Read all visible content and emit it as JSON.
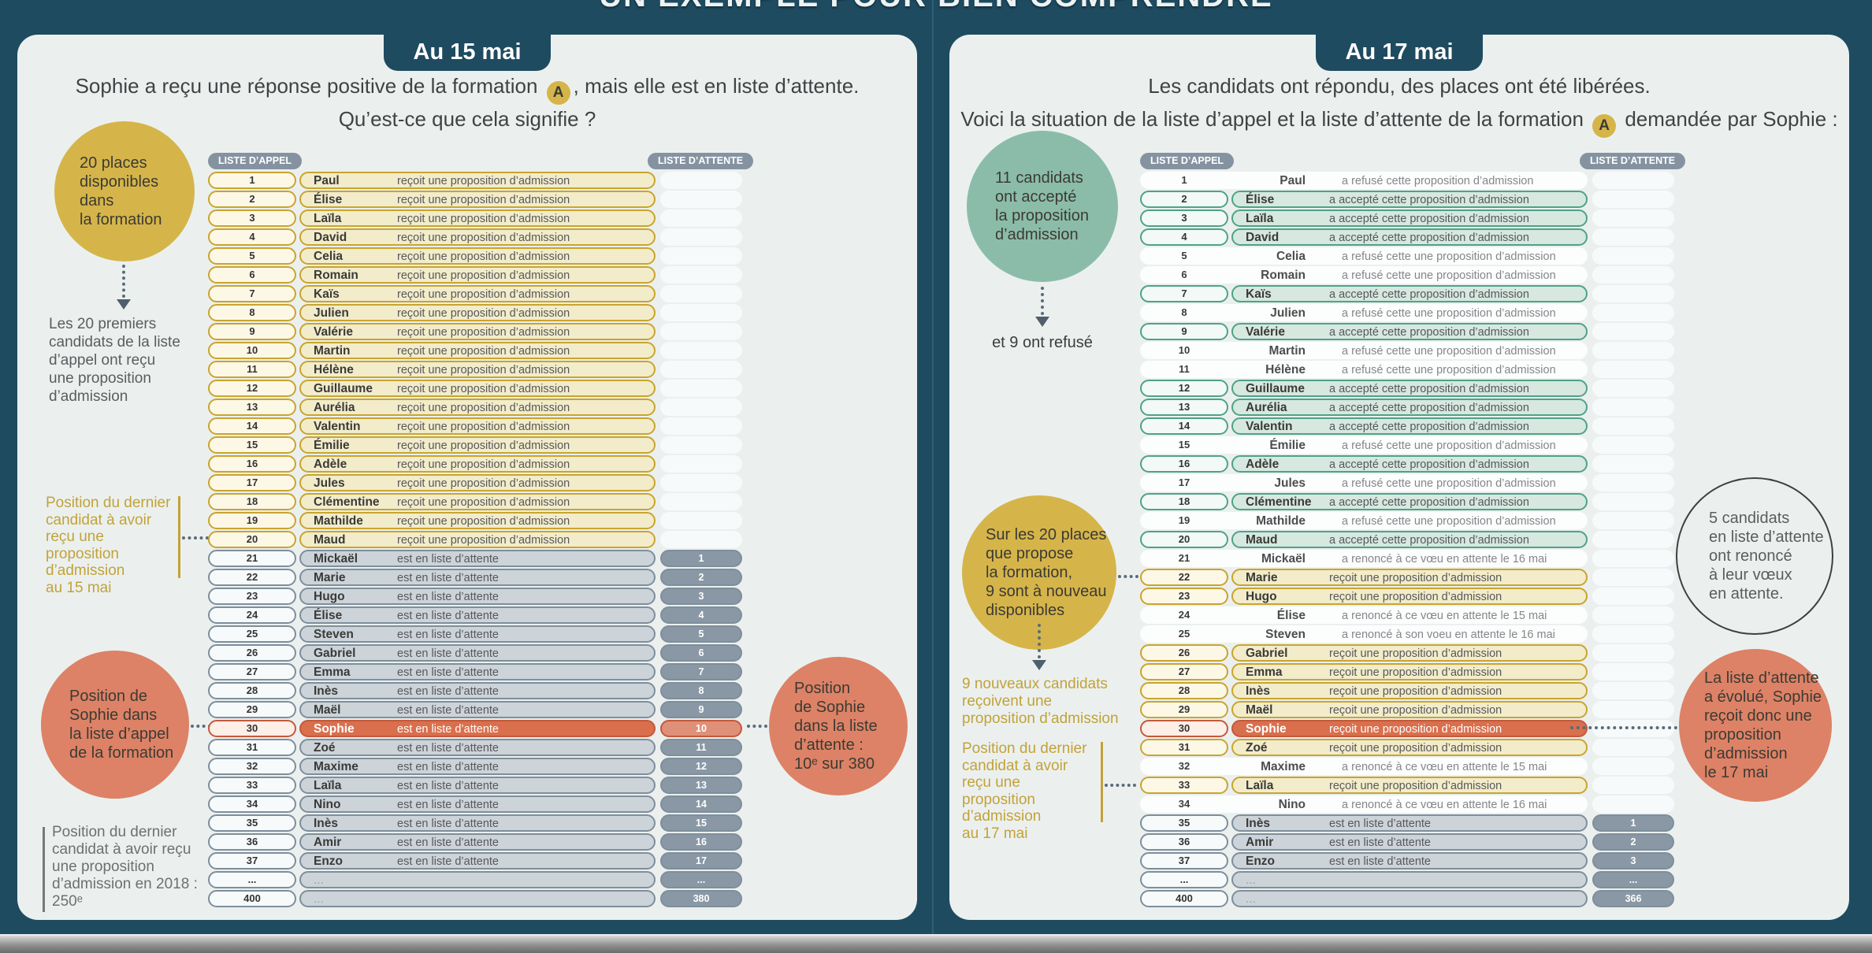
{
  "title": "UN EXEMPLE POUR BIEN COMPRENDRE",
  "colors": {
    "background": "#1e4b60",
    "panel": "#ebf0ef",
    "gold": "#d5b54a",
    "gold_border": "#c9a42e",
    "teal": "#8bbcaa",
    "teal_border": "#4ea287",
    "slate": "#8593a1",
    "salmon": "#dd8266",
    "sophie_row": "#d96f4d",
    "gold_text": "#c2a238"
  },
  "list_labels": {
    "appel": "LISTE D’APPEL",
    "attente": "LISTE D’ATTENTE"
  },
  "panels": [
    {
      "badge": "Au 15 mai",
      "intro": {
        "line1_pre": "Sophie a reçu une réponse positive de la formation ",
        "badge": "A",
        "line1_post": ", mais elle est en liste d’attente.",
        "line2": "Qu’est-ce que cela signifie ?"
      },
      "annotations": {
        "top_circle": "20 places\ndisponibles dans\nla formation",
        "first20_note": "Les 20 premiers\ncandidats de la liste\nd’appel ont reçu\nune proposition\nd’admission",
        "gold_note": "Position du dernier\ncandidat à avoir\nreçu une proposition\nd’admission\nau 15 mai",
        "sophie_circle": "Position de\nSophie dans\nla liste d’appel\nde la formation",
        "note_2018": "Position du dernier\ncandidat à avoir reçu\nune proposition\nd’admission en 2018 :\n250ᵉ",
        "attente_circle": "Position\nde Sophie\ndans la liste\nd’attente :\n10ᵉ sur 380"
      },
      "rows": [
        {
          "n": "1",
          "name": "Paul",
          "status": "reçoit une proposition d’admission",
          "t": "y"
        },
        {
          "n": "2",
          "name": "Élise",
          "status": "reçoit une proposition d’admission",
          "t": "y"
        },
        {
          "n": "3",
          "name": "Laïla",
          "status": "reçoit une proposition d’admission",
          "t": "y"
        },
        {
          "n": "4",
          "name": "David",
          "status": "reçoit une proposition d’admission",
          "t": "y"
        },
        {
          "n": "5",
          "name": "Celia",
          "status": "reçoit une proposition d’admission",
          "t": "y"
        },
        {
          "n": "6",
          "name": "Romain",
          "status": "reçoit une proposition d’admission",
          "t": "y"
        },
        {
          "n": "7",
          "name": "Kaïs",
          "status": "reçoit une proposition d’admission",
          "t": "y"
        },
        {
          "n": "8",
          "name": "Julien",
          "status": "reçoit une proposition d’admission",
          "t": "y"
        },
        {
          "n": "9",
          "name": "Valérie",
          "status": "reçoit une proposition d’admission",
          "t": "y"
        },
        {
          "n": "10",
          "name": "Martin",
          "status": "reçoit une proposition d’admission",
          "t": "y"
        },
        {
          "n": "11",
          "name": "Hélène",
          "status": "reçoit une proposition d’admission",
          "t": "y"
        },
        {
          "n": "12",
          "name": "Guillaume",
          "status": "reçoit une proposition d’admission",
          "t": "y"
        },
        {
          "n": "13",
          "name": "Aurélia",
          "status": "reçoit une proposition d’admission",
          "t": "y"
        },
        {
          "n": "14",
          "name": "Valentin",
          "status": "reçoit une proposition d’admission",
          "t": "y"
        },
        {
          "n": "15",
          "name": "Émilie",
          "status": "reçoit une proposition d’admission",
          "t": "y"
        },
        {
          "n": "16",
          "name": "Adèle",
          "status": "reçoit une proposition d’admission",
          "t": "y"
        },
        {
          "n": "17",
          "name": "Jules",
          "status": "reçoit une proposition d’admission",
          "t": "y"
        },
        {
          "n": "18",
          "name": "Clémentine",
          "status": "reçoit une proposition d’admission",
          "t": "y"
        },
        {
          "n": "19",
          "name": "Mathilde",
          "status": "reçoit une proposition d’admission",
          "t": "y"
        },
        {
          "n": "20",
          "name": "Maud",
          "status": "reçoit une proposition d’admission",
          "t": "y"
        },
        {
          "n": "21",
          "name": "Mickaël",
          "status": "est en liste d’attente",
          "t": "g",
          "w": "1"
        },
        {
          "n": "22",
          "name": "Marie",
          "status": "est en liste d’attente",
          "t": "g",
          "w": "2"
        },
        {
          "n": "23",
          "name": "Hugo",
          "status": "est en liste d’attente",
          "t": "g",
          "w": "3"
        },
        {
          "n": "24",
          "name": "Élise",
          "status": "est en liste d’attente",
          "t": "g",
          "w": "4"
        },
        {
          "n": "25",
          "name": "Steven",
          "status": "est en liste d’attente",
          "t": "g",
          "w": "5"
        },
        {
          "n": "26",
          "name": "Gabriel",
          "status": "est en liste d’attente",
          "t": "g",
          "w": "6"
        },
        {
          "n": "27",
          "name": "Emma",
          "status": "est en liste d’attente",
          "t": "g",
          "w": "7"
        },
        {
          "n": "28",
          "name": "Inès",
          "status": "est en liste d’attente",
          "t": "g",
          "w": "8"
        },
        {
          "n": "29",
          "name": "Maël",
          "status": "est en liste d’attente",
          "t": "g",
          "w": "9"
        },
        {
          "n": "30",
          "name": "Sophie",
          "status": "est en liste d’attente",
          "t": "s",
          "w": "10"
        },
        {
          "n": "31",
          "name": "Zoé",
          "status": "est en liste d’attente",
          "t": "g",
          "w": "11"
        },
        {
          "n": "32",
          "name": "Maxime",
          "status": "est en liste d’attente",
          "t": "g",
          "w": "12"
        },
        {
          "n": "33",
          "name": "Laïla",
          "status": "est en liste d’attente",
          "t": "g",
          "w": "13"
        },
        {
          "n": "34",
          "name": "Nino",
          "status": "est en liste d’attente",
          "t": "g",
          "w": "14"
        },
        {
          "n": "35",
          "name": "Inès",
          "status": "est en liste d’attente",
          "t": "g",
          "w": "15"
        },
        {
          "n": "36",
          "name": "Amir",
          "status": "est en liste d’attente",
          "t": "g",
          "w": "16"
        },
        {
          "n": "37",
          "name": "Enzo",
          "status": "est en liste d’attente",
          "t": "g",
          "w": "17"
        },
        {
          "n": "...",
          "name": "...",
          "status": "",
          "t": "g",
          "w": "...",
          "d": 1
        },
        {
          "n": "400",
          "name": "...",
          "status": "",
          "t": "g",
          "w": "380",
          "d": 1
        }
      ]
    },
    {
      "badge": "Au 17 mai",
      "intro": {
        "line1": "Les candidats ont répondu, des places ont été libérées.",
        "line2_pre": "Voici la situation de la liste d’appel et la liste d’attente de la formation ",
        "badge": "A",
        "line2_post": " demandée par Sophie :"
      },
      "annotations": {
        "top_circle": "11 candidats\nont accepté\nla proposition\nd’admission",
        "refused_note": "et 9 ont refusé",
        "places_circle": "Sur les 20 places\nque propose\nla formation,\n9 sont à nouveau\ndisponibles",
        "new_candidates_note": "9 nouveaux candidats\nreçoivent une\nproposition d’admission",
        "gold_note": "Position du dernier\ncandidat à avoir\nreçu une proposition\nd’admission\nau 17 mai",
        "renounce_circle": "5 candidats\nen liste d’attente\nont renoncé\nà leur vœux\nen attente.",
        "evolved_circle": "La liste d’attente\na évolué, Sophie\nreçoit donc une\nproposition\nd’admission\nle 17 mai"
      },
      "rows": [
        {
          "n": "1",
          "name": "Paul",
          "status": "a refusé cette proposition d’admission",
          "t": "p"
        },
        {
          "n": "2",
          "name": "Élise",
          "status": "a accepté cette proposition d’admission",
          "t": "t"
        },
        {
          "n": "3",
          "name": "Laïla",
          "status": "a accepté cette proposition d’admission",
          "t": "t"
        },
        {
          "n": "4",
          "name": "David",
          "status": "a accepté cette proposition d’admission",
          "t": "t"
        },
        {
          "n": "5",
          "name": "Celia",
          "status": "a refusé cette une proposition d’admission",
          "t": "p"
        },
        {
          "n": "6",
          "name": "Romain",
          "status": "a refusé cette une proposition d’admission",
          "t": "p"
        },
        {
          "n": "7",
          "name": "Kaïs",
          "status": "a accepté cette proposition d’admission",
          "t": "t"
        },
        {
          "n": "8",
          "name": "Julien",
          "status": "a refusé cette une proposition d’admission",
          "t": "p"
        },
        {
          "n": "9",
          "name": "Valérie",
          "status": "a accepté cette proposition d’admission",
          "t": "t"
        },
        {
          "n": "10",
          "name": "Martin",
          "status": "a refusé cette une proposition d’admission",
          "t": "p"
        },
        {
          "n": "11",
          "name": "Hélène",
          "status": "a refusé cette une proposition d’admission",
          "t": "p"
        },
        {
          "n": "12",
          "name": "Guillaume",
          "status": "a accepté cette proposition d’admission",
          "t": "t"
        },
        {
          "n": "13",
          "name": "Aurélia",
          "status": "a accepté cette proposition d’admission",
          "t": "t"
        },
        {
          "n": "14",
          "name": "Valentin",
          "status": "a accepté cette proposition d’admission",
          "t": "t"
        },
        {
          "n": "15",
          "name": "Émilie",
          "status": "a refusé cette une proposition d’admission",
          "t": "p"
        },
        {
          "n": "16",
          "name": "Adèle",
          "status": "a accepté cette proposition d’admission",
          "t": "t"
        },
        {
          "n": "17",
          "name": "Jules",
          "status": "a refusé cette une proposition d’admission",
          "t": "p"
        },
        {
          "n": "18",
          "name": "Clémentine",
          "status": "a accepté cette proposition d’admission",
          "t": "t"
        },
        {
          "n": "19",
          "name": "Mathilde",
          "status": "a refusé cette une proposition d’admission",
          "t": "p"
        },
        {
          "n": "20",
          "name": "Maud",
          "status": "a accepté cette proposition d’admission",
          "t": "t"
        },
        {
          "n": "21",
          "name": "Mickaël",
          "status": "a renoncé à ce vœu en attente le 16 mai",
          "t": "p"
        },
        {
          "n": "22",
          "name": "Marie",
          "status": "reçoit une proposition d’admission",
          "t": "y"
        },
        {
          "n": "23",
          "name": "Hugo",
          "status": "reçoit une proposition d’admission",
          "t": "y"
        },
        {
          "n": "24",
          "name": "Élise",
          "status": "a renoncé à ce vœu en attente le 15 mai",
          "t": "p"
        },
        {
          "n": "25",
          "name": "Steven",
          "status": "a renoncé à son voeu en attente le 16 mai",
          "t": "p"
        },
        {
          "n": "26",
          "name": "Gabriel",
          "status": "reçoit une proposition d’admission",
          "t": "y"
        },
        {
          "n": "27",
          "name": "Emma",
          "status": "reçoit une proposition d’admission",
          "t": "y"
        },
        {
          "n": "28",
          "name": "Inès",
          "status": "reçoit une proposition d’admission",
          "t": "y"
        },
        {
          "n": "29",
          "name": "Maël",
          "status": "reçoit une proposition d’admission",
          "t": "y"
        },
        {
          "n": "30",
          "name": "Sophie",
          "status": "reçoit une proposition d’admission",
          "t": "s"
        },
        {
          "n": "31",
          "name": "Zoé",
          "status": "reçoit une proposition d’admission",
          "t": "y"
        },
        {
          "n": "32",
          "name": "Maxime",
          "status": "a renoncé à ce vœu en attente le 15 mai",
          "t": "p"
        },
        {
          "n": "33",
          "name": "Laïla",
          "status": "reçoit une proposition d’admission",
          "t": "y"
        },
        {
          "n": "34",
          "name": "Nino",
          "status": "a renoncé à ce vœu en attente le 16 mai",
          "t": "p"
        },
        {
          "n": "35",
          "name": "Inès",
          "status": "est en liste d’attente",
          "t": "g",
          "w": "1"
        },
        {
          "n": "36",
          "name": "Amir",
          "status": "est en liste d’attente",
          "t": "g",
          "w": "2"
        },
        {
          "n": "37",
          "name": "Enzo",
          "status": "est en liste d’attente",
          "t": "g",
          "w": "3"
        },
        {
          "n": "...",
          "name": "...",
          "status": "",
          "t": "g",
          "w": "...",
          "d": 1
        },
        {
          "n": "400",
          "name": "...",
          "status": "",
          "t": "g",
          "w": "366",
          "d": 1
        }
      ]
    }
  ]
}
